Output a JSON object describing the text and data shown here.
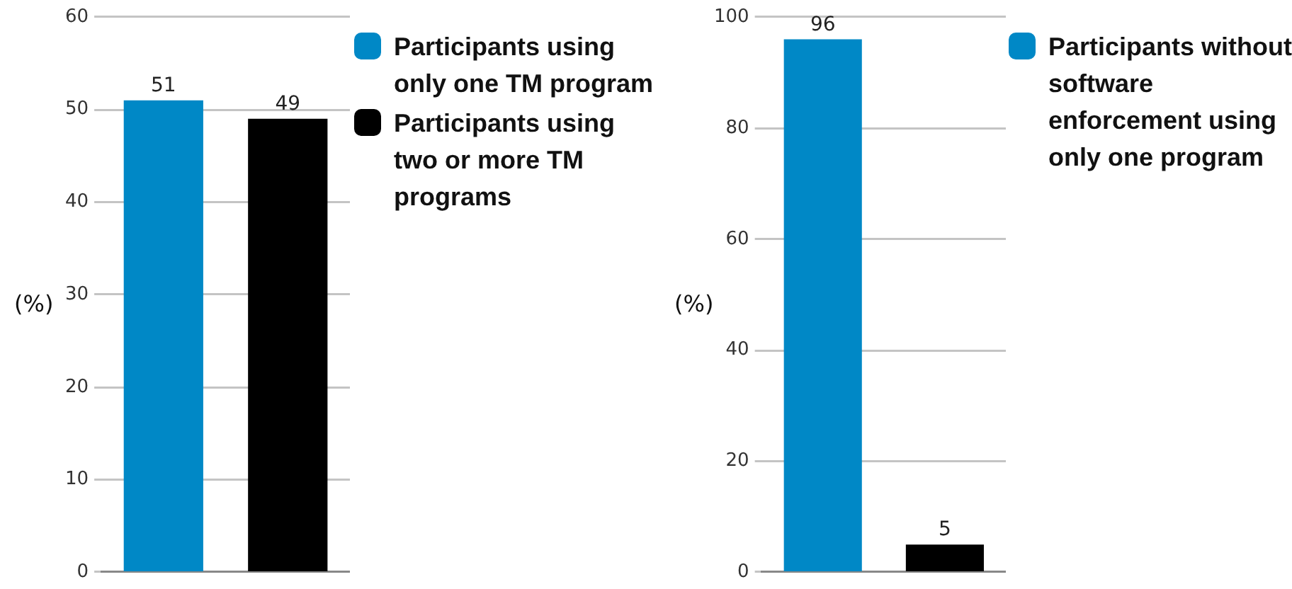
{
  "chart_data": [
    {
      "type": "bar",
      "categories": [
        null,
        null
      ],
      "ylabel": "(%)",
      "ylim": [
        0,
        60
      ],
      "yticks": [
        0,
        10,
        20,
        30,
        40,
        50,
        60
      ],
      "grid": "y",
      "legend": "top right",
      "data_labels": true,
      "series": [
        {
          "name": "Participants using only one TM program",
          "color": "#0088c6",
          "values": [
            51,
            null
          ]
        },
        {
          "name": "Participants using two or more TM programs",
          "color": "#000000",
          "values": [
            null,
            49
          ]
        }
      ]
    },
    {
      "type": "bar",
      "categories": [
        null,
        null
      ],
      "ylabel": "(%)",
      "ylim": [
        0,
        100
      ],
      "yticks": [
        0,
        20,
        40,
        60,
        80,
        100
      ],
      "grid": "y",
      "legend": "top right",
      "data_labels": true,
      "series": [
        {
          "name": "Participants without software enforcement using only one program",
          "color": "#0088c6",
          "values": [
            96,
            null
          ]
        },
        {
          "color": "#000000",
          "values": [
            null,
            5
          ]
        }
      ]
    }
  ]
}
